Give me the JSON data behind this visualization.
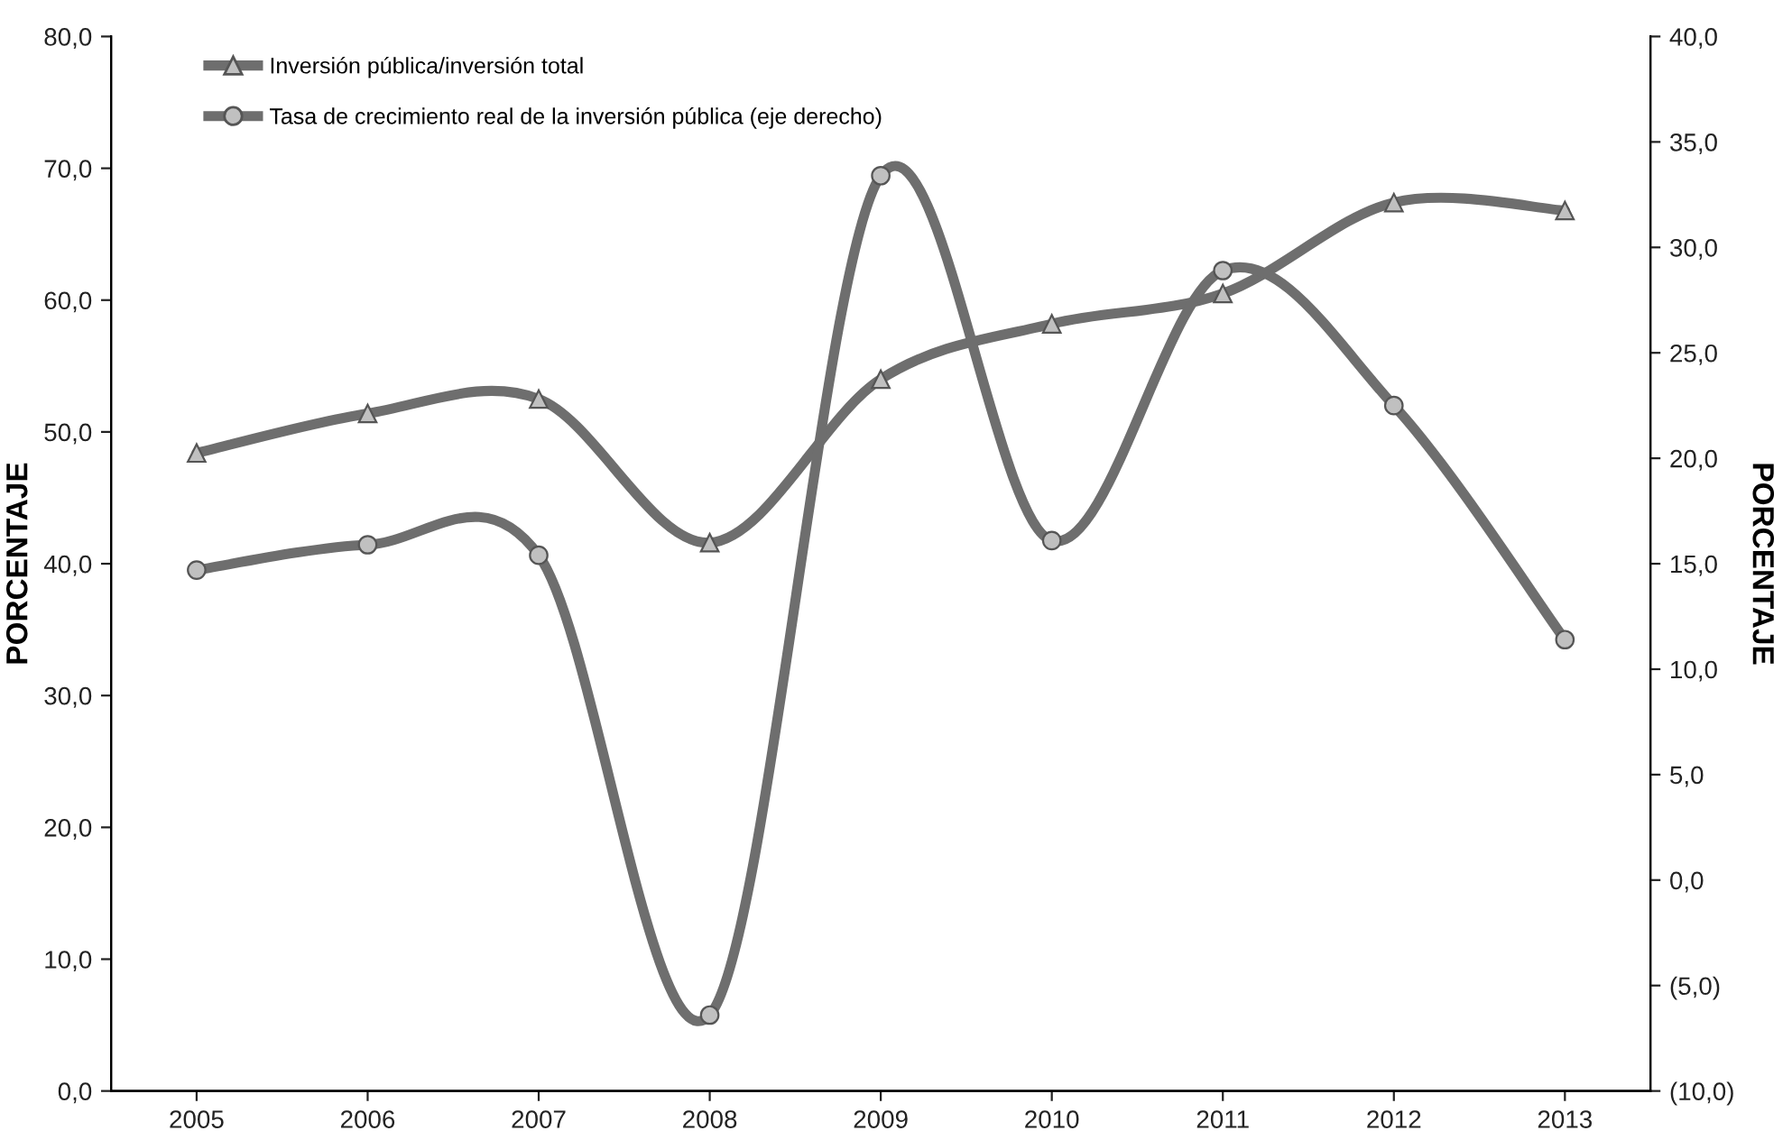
{
  "chart_data": {
    "type": "line",
    "categories": [
      "2005",
      "2006",
      "2007",
      "2008",
      "2009",
      "2010",
      "2011",
      "2012",
      "2013"
    ],
    "series": [
      {
        "name": "Inversión pública/inversión total",
        "color": "#6e6e6e",
        "marker": "triangle",
        "values": [
          48.4,
          51.4,
          52.5,
          41.6,
          54.0,
          58.2,
          60.5,
          67.4,
          66.8
        ]
      },
      {
        "name": "Tasa de crecimiento real de la inversión pública (eje derecho)",
        "color": "#6e6e6e",
        "marker": "circle",
        "axis": "y2",
        "values": [
          14.7,
          15.9,
          15.4,
          -6.4,
          33.4,
          16.1,
          28.9,
          22.5,
          11.4
        ]
      }
    ],
    "ylabel": "PORCENTAJE",
    "y2label": "PORCENTAJE",
    "ylim": [
      0,
      80
    ],
    "yticks": [
      {
        "value": 0,
        "label": "0,0"
      },
      {
        "value": 10,
        "label": "10,0"
      },
      {
        "value": 20,
        "label": "20,0"
      },
      {
        "value": 30,
        "label": "30,0"
      },
      {
        "value": 40,
        "label": "40,0"
      },
      {
        "value": 50,
        "label": "50,0"
      },
      {
        "value": 60,
        "label": "60,0"
      },
      {
        "value": 70,
        "label": "70,0"
      },
      {
        "value": 80,
        "label": "80,0"
      }
    ],
    "y2lim": [
      -10,
      40
    ],
    "y2ticks": [
      {
        "value": -10,
        "label": "(10,0)"
      },
      {
        "value": -5,
        "label": "(5,0)"
      },
      {
        "value": 0,
        "label": "0,0"
      },
      {
        "value": 5,
        "label": "5,0"
      },
      {
        "value": 10,
        "label": "10,0"
      },
      {
        "value": 15,
        "label": "15,0"
      },
      {
        "value": 20,
        "label": "20,0"
      },
      {
        "value": 25,
        "label": "25,0"
      },
      {
        "value": 30,
        "label": "30,0"
      },
      {
        "value": 35,
        "label": "35,0"
      },
      {
        "value": 40,
        "label": "40,0"
      }
    ],
    "legend": "top left",
    "line_style": "solid"
  }
}
